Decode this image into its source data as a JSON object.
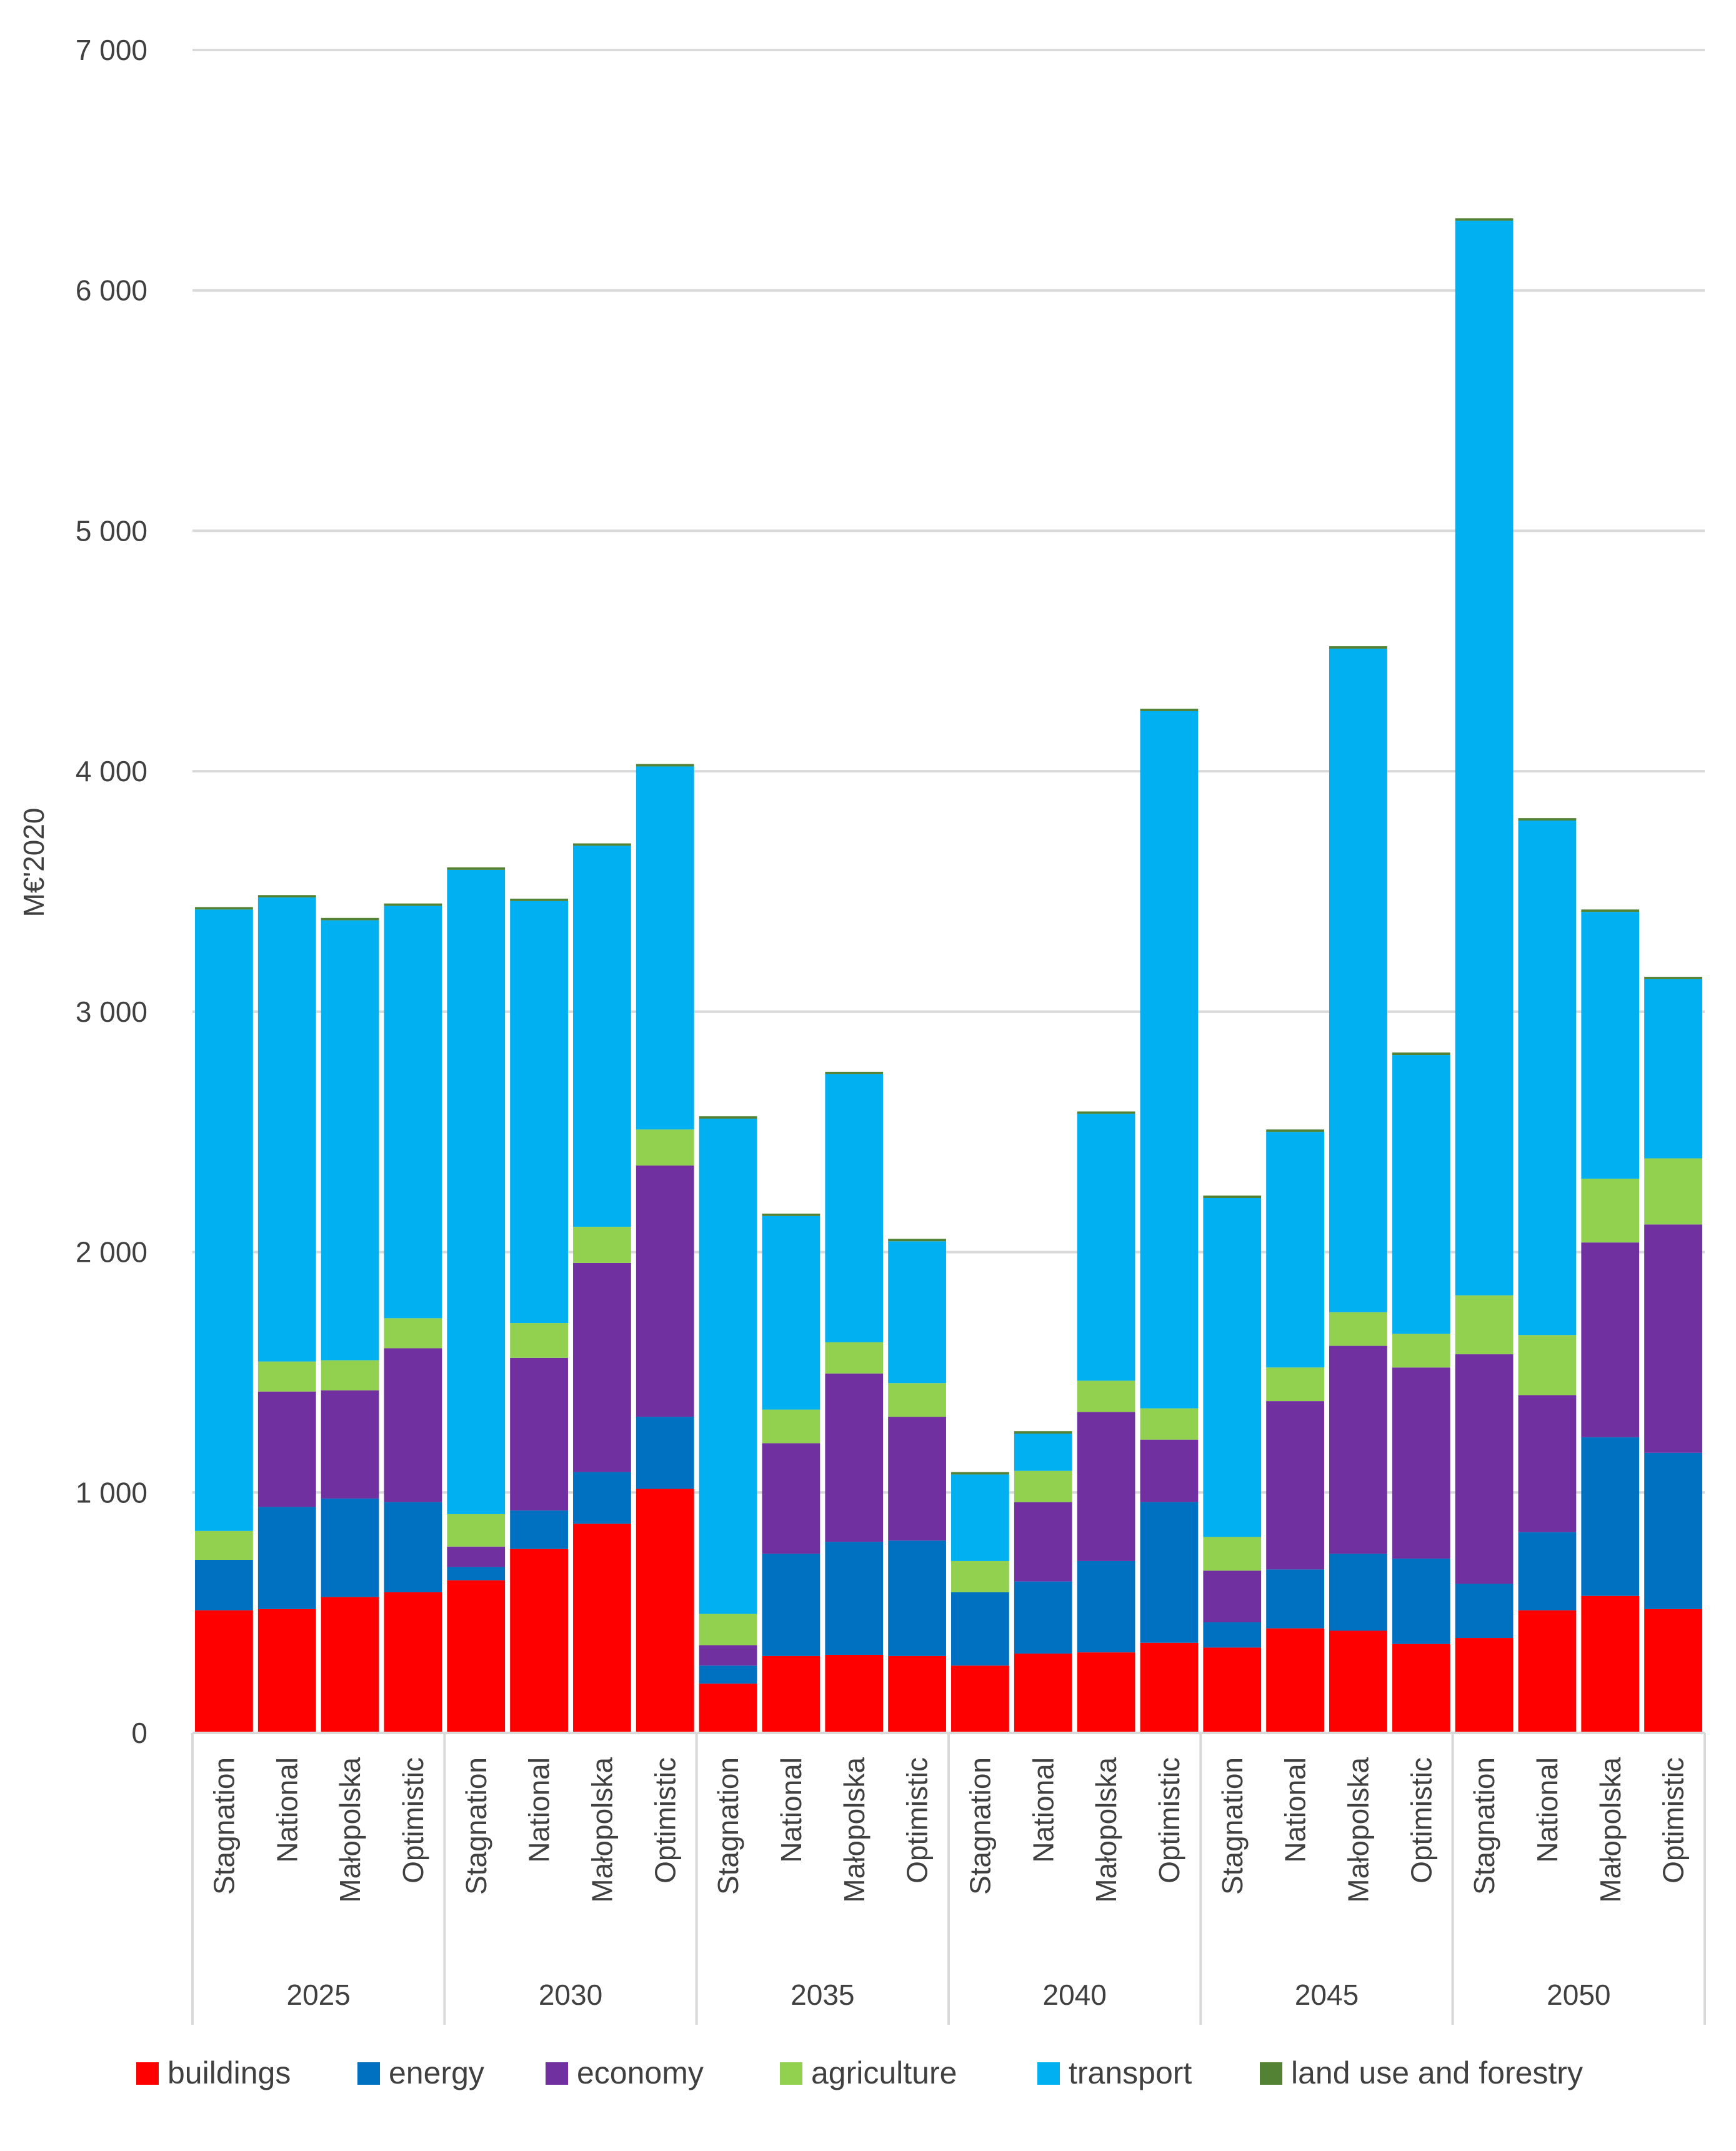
{
  "chart_data": {
    "type": "bar",
    "stacked": true,
    "ylabel": "M€'2020",
    "ylim": [
      0,
      7000
    ],
    "yticks": [
      0,
      1000,
      2000,
      3000,
      4000,
      5000,
      6000,
      7000
    ],
    "ytick_labels": [
      "0",
      "1 000",
      "2 000",
      "3 000",
      "4 000",
      "5 000",
      "6 000",
      "7 000"
    ],
    "grid": true,
    "legend_position": "bottom",
    "groups": [
      {
        "label": "2025",
        "categories": [
          "Stagnation",
          "National",
          "Małopolska",
          "Optimistic"
        ]
      },
      {
        "label": "2030",
        "categories": [
          "Stagnation",
          "National",
          "Małopolska",
          "Optimistic"
        ]
      },
      {
        "label": "2035",
        "categories": [
          "Stagnation",
          "National",
          "Małopolska",
          "Optimistic"
        ]
      },
      {
        "label": "2040",
        "categories": [
          "Stagnation",
          "National",
          "Małopolska",
          "Optimistic"
        ]
      },
      {
        "label": "2045",
        "categories": [
          "Stagnation",
          "National",
          "Małopolska",
          "Optimistic"
        ]
      },
      {
        "label": "2050",
        "categories": [
          "Stagnation",
          "National",
          "Małopolska",
          "Optimistic"
        ]
      }
    ],
    "series": [
      {
        "name": "buildings",
        "color": "#FF0000",
        "values": [
          510,
          515,
          565,
          585,
          635,
          765,
          870,
          1015,
          205,
          320,
          325,
          320,
          280,
          330,
          335,
          375,
          355,
          435,
          425,
          370,
          395,
          510,
          570,
          515
        ]
      },
      {
        "name": "energy",
        "color": "#0070C0",
        "values": [
          210,
          425,
          410,
          375,
          55,
          160,
          215,
          300,
          75,
          425,
          470,
          480,
          305,
          300,
          380,
          585,
          105,
          245,
          320,
          355,
          225,
          325,
          660,
          650
        ]
      },
      {
        "name": "economy",
        "color": "#7030A0",
        "values": [
          0,
          480,
          450,
          640,
          85,
          635,
          870,
          1045,
          85,
          460,
          700,
          515,
          0,
          330,
          620,
          260,
          215,
          700,
          865,
          795,
          955,
          570,
          810,
          950
        ]
      },
      {
        "name": "agriculture",
        "color": "#92D050",
        "values": [
          120,
          125,
          125,
          125,
          135,
          145,
          150,
          150,
          130,
          140,
          130,
          140,
          130,
          130,
          130,
          130,
          140,
          140,
          140,
          140,
          245,
          250,
          265,
          275
        ]
      },
      {
        "name": "transport",
        "color": "#00B0F0",
        "values": [
          2585,
          1930,
          1830,
          1715,
          2680,
          1755,
          1585,
          1510,
          2060,
          805,
          1115,
          590,
          360,
          155,
          1110,
          2900,
          1410,
          980,
          2760,
          1160,
          4470,
          2140,
          1110,
          745
        ]
      },
      {
        "name": "land use and forestry",
        "color": "#548235",
        "values": [
          10,
          10,
          10,
          10,
          10,
          10,
          10,
          10,
          10,
          10,
          10,
          10,
          10,
          10,
          10,
          10,
          10,
          10,
          10,
          10,
          10,
          10,
          10,
          10
        ]
      }
    ]
  }
}
